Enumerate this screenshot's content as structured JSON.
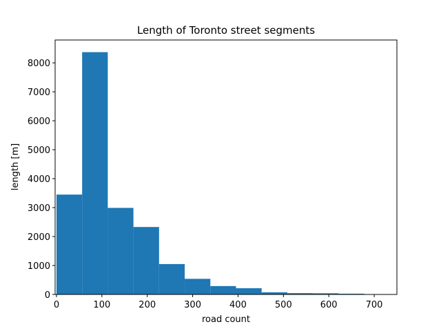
{
  "chart_data": {
    "type": "bar",
    "title": "Length of Toronto street segments",
    "xlabel": "road count",
    "ylabel": "length [m]",
    "bin_edges": [
      0,
      56.5,
      113,
      169.5,
      226,
      282.5,
      339,
      395.5,
      452,
      508.5,
      565,
      621.5,
      678,
      734.5
    ],
    "values": [
      3450,
      8370,
      2990,
      2330,
      1050,
      540,
      290,
      215,
      75,
      45,
      40,
      25,
      5
    ],
    "xlim": [
      -3,
      750
    ],
    "ylim": [
      0,
      8790
    ],
    "xticks": [
      0,
      100,
      200,
      300,
      400,
      500,
      600,
      700
    ],
    "yticks": [
      0,
      1000,
      2000,
      3000,
      4000,
      5000,
      6000,
      7000,
      8000
    ],
    "bar_color": "#1f77b4",
    "grid": false,
    "legend": "none"
  }
}
